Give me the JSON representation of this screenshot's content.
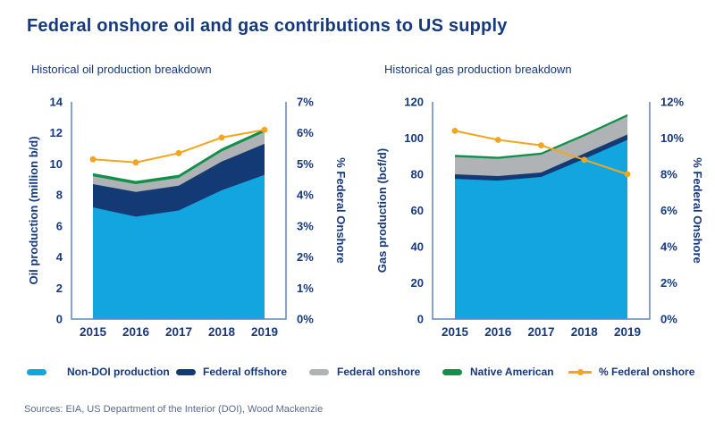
{
  "title": "Federal onshore oil and gas contributions to US supply",
  "source_note": "Sources: EIA, US Department of the Interior (DOI), Wood Mackenzie",
  "colors": {
    "light_blue": "#12A5DF",
    "navy": "#143A75",
    "gray": "#AFB3B5",
    "green": "#12904A",
    "orange": "#F4A51E",
    "axis": "#5D87BF",
    "text_navy": "#16397E",
    "source_text": "#5A6B8C"
  },
  "legend": {
    "items": [
      {
        "label": "Non-DOI production",
        "color_key": "light_blue",
        "swatch_type": "area"
      },
      {
        "label": "Federal offshore",
        "color_key": "navy",
        "swatch_type": "area"
      },
      {
        "label": "Federal onshore",
        "color_key": "gray",
        "swatch_type": "area"
      },
      {
        "label": "Native American",
        "color_key": "green",
        "swatch_type": "area"
      },
      {
        "label": "% Federal onshore",
        "color_key": "orange",
        "swatch_type": "line"
      }
    ]
  },
  "chart_data": [
    {
      "type": "area",
      "title": "Historical oil production breakdown",
      "ylabel": "Oil production (million b/d)",
      "y2label": "% Federal Onshore",
      "ylim": [
        0,
        14
      ],
      "y2lim": [
        0,
        7
      ],
      "yticks": [
        "0",
        "2",
        "4",
        "6",
        "8",
        "10",
        "12",
        "14"
      ],
      "y2ticks": [
        "0%",
        "1%",
        "2%",
        "3%",
        "4%",
        "5%",
        "6%",
        "7%"
      ],
      "categories": [
        "2015",
        "2016",
        "2017",
        "2018",
        "2019"
      ],
      "grid": false,
      "legend_position": "bottom-shared",
      "series": [
        {
          "name": "Non-DOI production",
          "type": "area",
          "axis": "left",
          "color": "light_blue",
          "values": [
            7.2,
            6.6,
            7.0,
            8.3,
            9.3
          ]
        },
        {
          "name": "Federal offshore",
          "type": "area",
          "axis": "left",
          "color": "navy",
          "values": [
            1.5,
            1.6,
            1.6,
            1.85,
            2.0
          ]
        },
        {
          "name": "Federal onshore",
          "type": "area",
          "axis": "left",
          "color": "gray",
          "values": [
            0.5,
            0.5,
            0.5,
            0.65,
            0.75
          ]
        },
        {
          "name": "Native American",
          "type": "area",
          "axis": "left",
          "color": "green",
          "values": [
            0.2,
            0.2,
            0.2,
            0.2,
            0.2
          ]
        },
        {
          "name": "% Federal onshore",
          "type": "line",
          "axis": "right",
          "color": "orange",
          "values": [
            5.15,
            5.05,
            5.35,
            5.85,
            6.1
          ]
        }
      ]
    },
    {
      "type": "area",
      "title": "Historical gas production breakdown",
      "ylabel": "Gas production (bcf/d)",
      "y2label": "% Federal Onshore",
      "ylim": [
        0,
        120
      ],
      "y2lim": [
        0,
        12
      ],
      "yticks": [
        "0",
        "20",
        "40",
        "60",
        "80",
        "100",
        "120"
      ],
      "y2ticks": [
        "0%",
        "2%",
        "4%",
        "6%",
        "8%",
        "10%",
        "12%"
      ],
      "categories": [
        "2015",
        "2016",
        "2017",
        "2018",
        "2019"
      ],
      "grid": false,
      "legend_position": "bottom-shared",
      "series": [
        {
          "name": "Non-DOI production",
          "type": "area",
          "axis": "left",
          "color": "light_blue",
          "values": [
            77.5,
            76.5,
            78.5,
            88.5,
            99
          ]
        },
        {
          "name": "Federal offshore",
          "type": "area",
          "axis": "left",
          "color": "navy",
          "values": [
            2.5,
            2.5,
            2.5,
            3,
            3
          ]
        },
        {
          "name": "Federal onshore",
          "type": "area",
          "axis": "left",
          "color": "gray",
          "values": [
            9.5,
            9.5,
            9.8,
            9.5,
            10
          ]
        },
        {
          "name": "Native American",
          "type": "area",
          "axis": "left",
          "color": "green",
          "values": [
            1.2,
            1.2,
            1.2,
            1.2,
            1.2
          ]
        },
        {
          "name": "% Federal onshore",
          "type": "line",
          "axis": "right",
          "color": "orange",
          "values": [
            10.4,
            9.9,
            9.6,
            8.8,
            8.0
          ]
        }
      ]
    }
  ]
}
